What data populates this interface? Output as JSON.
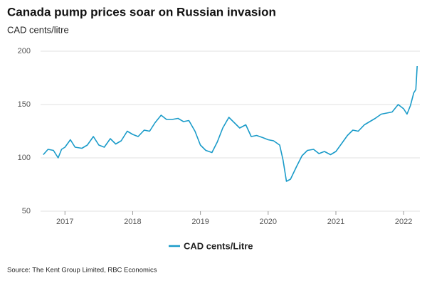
{
  "chart_data": {
    "type": "line",
    "title": "Canada pump prices soar on Russian invasion",
    "subtitle": "CAD cents/litre",
    "source": "Source: The Kent Group Limited, RBC Economics",
    "x": [
      2016.68,
      2016.75,
      2016.83,
      2016.9,
      2016.95,
      2017.0,
      2017.08,
      2017.15,
      2017.25,
      2017.33,
      2017.42,
      2017.5,
      2017.58,
      2017.67,
      2017.75,
      2017.83,
      2017.92,
      2018.0,
      2018.08,
      2018.17,
      2018.25,
      2018.33,
      2018.42,
      2018.5,
      2018.58,
      2018.67,
      2018.75,
      2018.83,
      2018.92,
      2019.0,
      2019.08,
      2019.17,
      2019.25,
      2019.33,
      2019.42,
      2019.5,
      2019.58,
      2019.67,
      2019.75,
      2019.83,
      2019.92,
      2020.0,
      2020.08,
      2020.17,
      2020.22,
      2020.27,
      2020.33,
      2020.42,
      2020.5,
      2020.58,
      2020.67,
      2020.75,
      2020.83,
      2020.92,
      2021.0,
      2021.08,
      2021.17,
      2021.25,
      2021.33,
      2021.42,
      2021.5,
      2021.58,
      2021.67,
      2021.75,
      2021.83,
      2021.92,
      2022.0,
      2022.05,
      2022.1,
      2022.15,
      2022.18,
      2022.2
    ],
    "series": [
      {
        "name": "CAD cents/Litre",
        "color": "#1a9bc9",
        "values": [
          103,
          108,
          107,
          100,
          108,
          110,
          117,
          110,
          109,
          112,
          120,
          112,
          110,
          118,
          113,
          116,
          125,
          122,
          120,
          126,
          125,
          133,
          140,
          136,
          136,
          137,
          134,
          135,
          125,
          112,
          107,
          105,
          115,
          128,
          138,
          133,
          128,
          131,
          120,
          121,
          119,
          117,
          116,
          112,
          98,
          78,
          80,
          92,
          102,
          107,
          108,
          104,
          106,
          103,
          106,
          113,
          121,
          126,
          125,
          131,
          134,
          137,
          141,
          142,
          143,
          150,
          146,
          141,
          149,
          161,
          164,
          186
        ]
      }
    ],
    "xlim": [
      2016.64,
      2022.24
    ],
    "xticks": [
      2017,
      2018,
      2019,
      2020,
      2021,
      2022
    ],
    "ylim": [
      50,
      200
    ],
    "yticks": [
      50,
      100,
      150,
      200
    ],
    "grid": true,
    "legend": "bottom"
  }
}
